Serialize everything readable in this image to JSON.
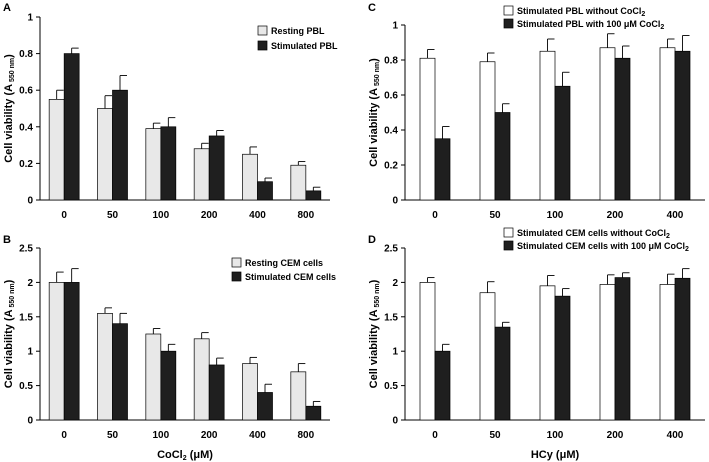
{
  "chart_data": [
    {
      "id": "A",
      "type": "bar",
      "panel_label": "A",
      "ylabel": "Cell viability (A",
      "ylabel_sub": "550 nm",
      "ylabel_close": ")",
      "ylim": [
        0,
        1
      ],
      "yticks": [
        "0",
        "0.2",
        "0.4",
        "0.6",
        "0.8",
        "1"
      ],
      "categories": [
        "0",
        "50",
        "100",
        "200",
        "400",
        "800"
      ],
      "xlabel": "",
      "legend_position": "top-right",
      "series": [
        {
          "name": "Resting PBL",
          "color": "#e8e8e8",
          "values": [
            0.55,
            0.5,
            0.39,
            0.28,
            0.25,
            0.19
          ],
          "errors": [
            0.05,
            0.07,
            0.03,
            0.03,
            0.04,
            0.02
          ]
        },
        {
          "name": "Stimulated PBL",
          "color": "#1f1f1f",
          "values": [
            0.8,
            0.6,
            0.4,
            0.35,
            0.1,
            0.05
          ],
          "errors": [
            0.03,
            0.08,
            0.05,
            0.03,
            0.02,
            0.02
          ]
        }
      ]
    },
    {
      "id": "B",
      "type": "bar",
      "panel_label": "B",
      "ylabel": "Cell viability (A",
      "ylabel_sub": "550 nm",
      "ylabel_close": ")",
      "ylim": [
        0,
        2.5
      ],
      "yticks": [
        "0",
        "0.5",
        "1",
        "1.5",
        "2",
        "2.5"
      ],
      "categories": [
        "0",
        "50",
        "100",
        "200",
        "400",
        "800"
      ],
      "xlabel": "CoCl",
      "xlabel_sub": "2",
      "xlabel_rest": " (μM)",
      "legend_position": "top-right",
      "series": [
        {
          "name": "Resting CEM cells",
          "color": "#e8e8e8",
          "values": [
            2.0,
            1.55,
            1.25,
            1.18,
            0.82,
            0.7
          ],
          "errors": [
            0.15,
            0.08,
            0.08,
            0.09,
            0.09,
            0.12
          ]
        },
        {
          "name": "Stimulated CEM cells",
          "color": "#1f1f1f",
          "values": [
            2.0,
            1.4,
            1.0,
            0.8,
            0.4,
            0.2
          ],
          "errors": [
            0.2,
            0.15,
            0.1,
            0.1,
            0.12,
            0.07
          ]
        }
      ]
    },
    {
      "id": "C",
      "type": "bar",
      "panel_label": "C",
      "ylabel": "Cell viability (A",
      "ylabel_sub": "550 nm",
      "ylabel_close": ")",
      "ylim": [
        0,
        1
      ],
      "yticks": [
        "0",
        "0.2",
        "0.4",
        "0.6",
        "0.8",
        "1"
      ],
      "categories": [
        "0",
        "50",
        "100",
        "200",
        "400"
      ],
      "xlabel": "",
      "legend_position": "top",
      "series": [
        {
          "name": "Stimulated PBL without CoCl",
          "name_sub": "2",
          "color": "#ffffff",
          "values": [
            0.81,
            0.79,
            0.85,
            0.87,
            0.87
          ],
          "errors": [
            0.05,
            0.05,
            0.07,
            0.08,
            0.05
          ]
        },
        {
          "name": "Stimulated PBL with 100 μM CoCl",
          "name_sub": "2",
          "color": "#1f1f1f",
          "values": [
            0.35,
            0.5,
            0.65,
            0.81,
            0.85
          ],
          "errors": [
            0.07,
            0.05,
            0.08,
            0.07,
            0.09
          ]
        }
      ]
    },
    {
      "id": "D",
      "type": "bar",
      "panel_label": "D",
      "ylabel": "Cell viability (A",
      "ylabel_sub": "550 nm",
      "ylabel_close": ")",
      "ylim": [
        0,
        2.5
      ],
      "yticks": [
        "0",
        "0.5",
        "1",
        "1.5",
        "2",
        "2.5"
      ],
      "categories": [
        "0",
        "50",
        "100",
        "200",
        "400"
      ],
      "xlabel": "HCy (μM)",
      "legend_position": "top",
      "series": [
        {
          "name": "Stimulated CEM cells without CoCl",
          "name_sub": "2",
          "color": "#ffffff",
          "values": [
            2.0,
            1.85,
            1.95,
            1.97,
            1.97
          ],
          "errors": [
            0.07,
            0.16,
            0.15,
            0.14,
            0.15
          ]
        },
        {
          "name": "Stimulated CEM cells with 100 μM CoCl",
          "name_sub": "2",
          "color": "#1f1f1f",
          "values": [
            1.0,
            1.35,
            1.8,
            2.07,
            2.06
          ],
          "errors": [
            0.1,
            0.07,
            0.11,
            0.07,
            0.14
          ]
        }
      ]
    }
  ]
}
